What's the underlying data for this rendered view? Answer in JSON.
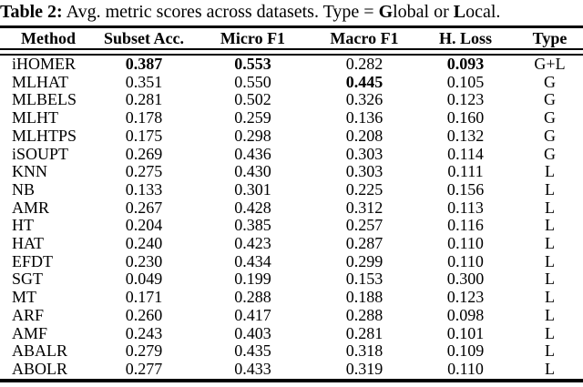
{
  "caption": {
    "segments": [
      {
        "text": "Table 2:",
        "bold": true
      },
      {
        "text": " Avg. metric scores across datasets. Type = ",
        "bold": false
      },
      {
        "text": "G",
        "bold": true
      },
      {
        "text": "lobal or ",
        "bold": false
      },
      {
        "text": "L",
        "bold": true
      },
      {
        "text": "ocal.",
        "bold": false
      }
    ]
  },
  "table": {
    "columns": [
      "Method",
      "Subset Acc.",
      "Micro F1",
      "Macro F1",
      "H. Loss",
      "Type"
    ],
    "rows": [
      {
        "cells": [
          "iHOMER",
          "0.387",
          "0.553",
          "0.282",
          "0.093",
          "G+L"
        ],
        "bold": [
          1,
          2,
          4
        ]
      },
      {
        "cells": [
          "MLHAT",
          "0.351",
          "0.550",
          "0.445",
          "0.105",
          "G"
        ],
        "bold": [
          3
        ]
      },
      {
        "cells": [
          "MLBELS",
          "0.281",
          "0.502",
          "0.326",
          "0.123",
          "G"
        ],
        "bold": []
      },
      {
        "cells": [
          "MLHT",
          "0.178",
          "0.259",
          "0.136",
          "0.160",
          "G"
        ],
        "bold": []
      },
      {
        "cells": [
          "MLHTPS",
          "0.175",
          "0.298",
          "0.208",
          "0.132",
          "G"
        ],
        "bold": []
      },
      {
        "cells": [
          "iSOUPT",
          "0.269",
          "0.436",
          "0.303",
          "0.114",
          "G"
        ],
        "bold": []
      },
      {
        "cells": [
          "KNN",
          "0.275",
          "0.430",
          "0.303",
          "0.111",
          "L"
        ],
        "bold": []
      },
      {
        "cells": [
          "NB",
          "0.133",
          "0.301",
          "0.225",
          "0.156",
          "L"
        ],
        "bold": []
      },
      {
        "cells": [
          "AMR",
          "0.267",
          "0.428",
          "0.312",
          "0.113",
          "L"
        ],
        "bold": []
      },
      {
        "cells": [
          "HT",
          "0.204",
          "0.385",
          "0.257",
          "0.116",
          "L"
        ],
        "bold": []
      },
      {
        "cells": [
          "HAT",
          "0.240",
          "0.423",
          "0.287",
          "0.110",
          "L"
        ],
        "bold": []
      },
      {
        "cells": [
          "EFDT",
          "0.230",
          "0.434",
          "0.299",
          "0.110",
          "L"
        ],
        "bold": []
      },
      {
        "cells": [
          "SGT",
          "0.049",
          "0.199",
          "0.153",
          "0.300",
          "L"
        ],
        "bold": []
      },
      {
        "cells": [
          "MT",
          "0.171",
          "0.288",
          "0.188",
          "0.123",
          "L"
        ],
        "bold": []
      },
      {
        "cells": [
          "ARF",
          "0.260",
          "0.417",
          "0.288",
          "0.098",
          "L"
        ],
        "bold": []
      },
      {
        "cells": [
          "AMF",
          "0.243",
          "0.403",
          "0.281",
          "0.101",
          "L"
        ],
        "bold": []
      },
      {
        "cells": [
          "ABALR",
          "0.279",
          "0.435",
          "0.318",
          "0.109",
          "L"
        ],
        "bold": []
      },
      {
        "cells": [
          "ABOLR",
          "0.277",
          "0.433",
          "0.319",
          "0.110",
          "L"
        ],
        "bold": []
      }
    ]
  },
  "colors": {
    "text": "#000000",
    "background": "#ffffff",
    "rule": "#000000"
  }
}
